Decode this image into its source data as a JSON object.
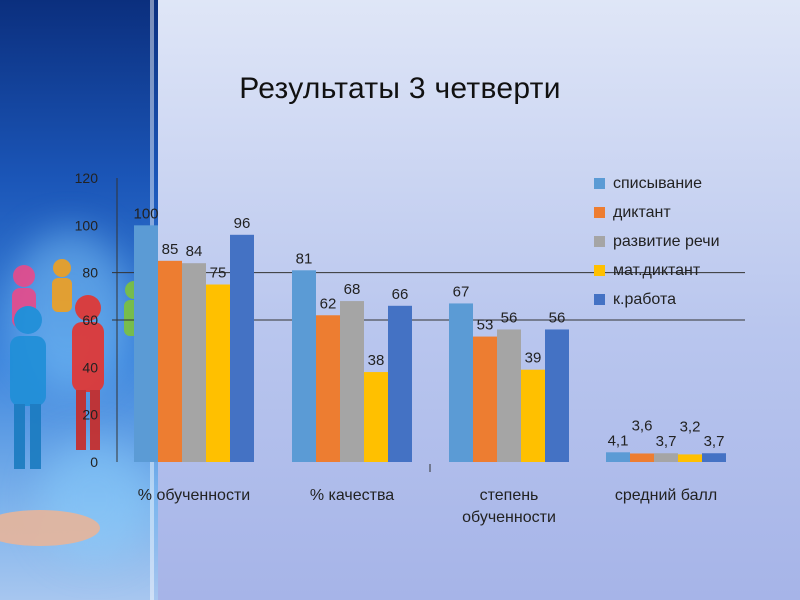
{
  "title": "Результаты 3 четверти",
  "chart_data": {
    "type": "bar",
    "categories": [
      "% обученности",
      "% качества",
      "степень обученности",
      "средний балл"
    ],
    "category_lines": [
      [
        "% обученности"
      ],
      [
        "% качества"
      ],
      [
        "степень",
        "обученности"
      ],
      [
        "средний балл"
      ]
    ],
    "series": [
      {
        "name": "списывание",
        "color": "#5b9bd5",
        "values": [
          100,
          81,
          67,
          4.1
        ]
      },
      {
        "name": "диктант",
        "color": "#ed7d31",
        "values": [
          85,
          62,
          53,
          3.6
        ]
      },
      {
        "name": "развитие речи",
        "color": "#a5a5a5",
        "values": [
          84,
          68,
          56,
          3.7
        ]
      },
      {
        "name": "мат.диктант",
        "color": "#ffc000",
        "values": [
          75,
          38,
          39,
          3.2
        ]
      },
      {
        "name": "к.работа",
        "color": "#4472c4",
        "values": [
          96,
          66,
          56,
          3.7
        ]
      }
    ],
    "data_labels": [
      [
        "100",
        "85",
        "84",
        "75",
        "96"
      ],
      [
        "81",
        "62",
        "68",
        "38",
        "66"
      ],
      [
        "67",
        "53",
        "56",
        "39",
        "56"
      ],
      [
        "4,1",
        "3,6",
        "3,7",
        "3,2",
        "3,7"
      ]
    ],
    "y_ticks": [
      "0",
      "20",
      "40",
      "60",
      "80",
      "100",
      "120"
    ],
    "ylim": [
      0,
      120
    ],
    "gridlines": [
      60,
      80
    ],
    "legend": "right"
  }
}
